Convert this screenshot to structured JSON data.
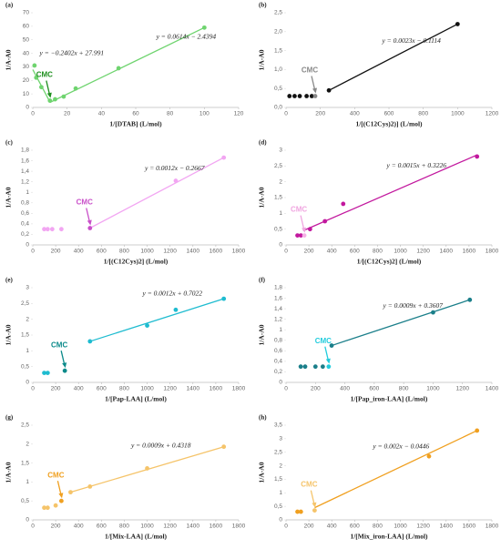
{
  "chart_data": [
    {
      "type": "scatter",
      "title": "(a)",
      "xlabel": "1/[DTAB] (L/mol)",
      "ylabel": "1/A-A0",
      "xlim": [
        0,
        120
      ],
      "xticks": [
        0,
        20,
        40,
        60,
        80,
        100,
        120
      ],
      "ylim": [
        0,
        70
      ],
      "yticks": [
        0,
        10,
        20,
        30,
        40,
        50,
        60,
        70
      ],
      "series": [
        {
          "color": "#6fd46f",
          "x": [
            1,
            2,
            5,
            10,
            13,
            18,
            25,
            50,
            100
          ],
          "values": [
            31,
            22,
            15,
            5,
            6,
            8,
            14,
            29,
            59
          ]
        },
        {
          "color": "#6fd46f",
          "markers": false,
          "x": [
            0,
            10
          ],
          "values": [
            28,
            4
          ]
        },
        {
          "color": "#6fd46f",
          "markers": false,
          "x": [
            10,
            100
          ],
          "values": [
            3.7,
            59
          ]
        }
      ],
      "equations": [
        {
          "text": "y = −0.2402x + 27.991",
          "x": 4,
          "y": 40
        },
        {
          "text": "y = 0.0614x − 2.4394",
          "x": 72,
          "y": 52
        }
      ],
      "annotation": {
        "text": "CMC",
        "x": 10,
        "y": 5,
        "color": "#1f8f1f"
      }
    },
    {
      "type": "scatter",
      "title": "(b)",
      "xlabel": "1/[(C12Cys)2)] (L/mol)",
      "ylabel": "1/A-A0",
      "xlim": [
        0,
        1200
      ],
      "xticks": [
        0,
        200,
        400,
        600,
        800,
        1000,
        1200
      ],
      "ylim": [
        0,
        2.5
      ],
      "yticks": [
        {
          "value": 0,
          "label": "0,0"
        },
        {
          "value": 0.5,
          "label": "0,5"
        },
        {
          "value": 1,
          "label": "1,0"
        },
        {
          "value": 1.5,
          "label": "1,5"
        },
        {
          "value": 2,
          "label": "2,0"
        },
        {
          "value": 2.5,
          "label": "2,5"
        }
      ],
      "series": [
        {
          "color": "#111111",
          "x": [
            20,
            50,
            80,
            120,
            150,
            250,
            1000
          ],
          "values": [
            0.3,
            0.3,
            0.3,
            0.3,
            0.3,
            0.45,
            2.2
          ]
        },
        {
          "color": "#888888",
          "x": [
            170
          ],
          "values": [
            0.3
          ]
        },
        {
          "color": "#111111",
          "markers": false,
          "x": [
            250,
            1000
          ],
          "values": [
            0.45,
            2.2
          ]
        }
      ],
      "equations": [
        {
          "text": "y = 0.0023x − 0.1114",
          "x": 560,
          "y": 1.75
        }
      ],
      "annotation": {
        "text": "CMC",
        "x": 170,
        "y": 0.3,
        "color": "#888888"
      }
    },
    {
      "type": "scatter",
      "title": "(c)",
      "xlabel": "1/[(C12Cys)2] (L/mol)",
      "ylabel": "1/A-A0",
      "xlim": [
        0,
        1800
      ],
      "xticks": [
        0,
        200,
        400,
        600,
        800,
        1000,
        1200,
        1400,
        1600,
        1800
      ],
      "ylim": [
        0,
        1.8
      ],
      "yticks": [
        0,
        {
          "value": 0.2,
          "label": "0,2"
        },
        {
          "value": 0.4,
          "label": "0,4"
        },
        {
          "value": 0.6,
          "label": "0,6"
        },
        {
          "value": 0.8,
          "label": "0,8"
        },
        1,
        {
          "value": 1.2,
          "label": "1,2"
        },
        {
          "value": 1.4,
          "label": "1,4"
        },
        {
          "value": 1.6,
          "label": "1,6"
        },
        {
          "value": 1.8,
          "label": "1,8"
        }
      ],
      "series": [
        {
          "color": "#f2a6f2",
          "x": [
            100,
            130,
            170,
            250,
            1250,
            1670
          ],
          "values": [
            0.3,
            0.3,
            0.3,
            0.3,
            1.22,
            1.66
          ]
        },
        {
          "color": "#c94fc9",
          "x": [
            500
          ],
          "values": [
            0.32
          ]
        },
        {
          "color": "#f2a6f2",
          "markers": false,
          "x": [
            500,
            1670
          ],
          "values": [
            0.32,
            1.66
          ]
        }
      ],
      "equations": [
        {
          "text": "y = 0.0012x − 0.2667",
          "x": 980,
          "y": 1.45
        }
      ],
      "annotation": {
        "text": "CMC",
        "x": 500,
        "y": 0.32,
        "color": "#c94fc9"
      }
    },
    {
      "type": "scatter",
      "title": "(d)",
      "xlabel": "1/[(C12Cys)2] (L/mol)",
      "ylabel": "1/A-A0",
      "xlim": [
        0,
        1800
      ],
      "xticks": [
        0,
        200,
        400,
        600,
        800,
        1000,
        1200,
        1400,
        1600,
        1800
      ],
      "ylim": [
        0,
        3
      ],
      "yticks": [
        0,
        {
          "value": 0.5,
          "label": "0,5"
        },
        1,
        {
          "value": 1.5,
          "label": "1,5"
        },
        2,
        {
          "value": 2.5,
          "label": "2,5"
        },
        3
      ],
      "series": [
        {
          "color": "#c2189e",
          "x": [
            100,
            130,
            210,
            340,
            500,
            1670
          ],
          "values": [
            0.3,
            0.3,
            0.5,
            0.75,
            1.3,
            2.8
          ]
        },
        {
          "color": "#f5b0e6",
          "x": [
            160
          ],
          "values": [
            0.3
          ]
        },
        {
          "color": "#c2189e",
          "markers": false,
          "x": [
            150,
            1670
          ],
          "values": [
            0.45,
            2.85
          ]
        }
      ],
      "equations": [
        {
          "text": "y = 0.0015x + 0.3226",
          "x": 880,
          "y": 2.5
        }
      ],
      "annotation": {
        "text": "CMC",
        "x": 160,
        "y": 0.3,
        "color": "#f0a6e0"
      }
    },
    {
      "type": "scatter",
      "title": "(e)",
      "xlabel": "1/[Pap-LAA] (L/mol)",
      "ylabel": "1/A-A0",
      "xlim": [
        0,
        1800
      ],
      "xticks": [
        0,
        200,
        400,
        600,
        800,
        1000,
        1200,
        1400,
        1600,
        1800
      ],
      "ylim": [
        0,
        3
      ],
      "yticks": [
        0,
        {
          "value": 0.5,
          "label": "0,5"
        },
        1,
        {
          "value": 1.5,
          "label": "1,5"
        },
        2,
        {
          "value": 2.5,
          "label": "2,5"
        },
        3
      ],
      "series": [
        {
          "color": "#1fbcd0",
          "x": [
            100,
            130,
            500,
            1000,
            1250,
            1670
          ],
          "values": [
            0.3,
            0.3,
            1.3,
            1.8,
            2.3,
            2.65
          ]
        },
        {
          "color": "#0a8a8a",
          "x": [
            280
          ],
          "values": [
            0.37
          ]
        },
        {
          "color": "#1fbcd0",
          "markers": false,
          "x": [
            500,
            1670
          ],
          "values": [
            1.3,
            2.65
          ]
        }
      ],
      "equations": [
        {
          "text": "y = 0.0012x + 0.7022",
          "x": 960,
          "y": 2.8
        }
      ],
      "annotation": {
        "text": "CMC",
        "x": 280,
        "y": 0.37,
        "color": "#0a8a8a"
      }
    },
    {
      "type": "scatter",
      "title": "(f)",
      "xlabel": "1/[Pap_iron-LAA] (L/mol)",
      "ylabel": "1/A-A0",
      "xlim": [
        0,
        1400
      ],
      "xticks": [
        0,
        200,
        400,
        600,
        800,
        1000,
        1200,
        1400
      ],
      "ylim": [
        0,
        1.8
      ],
      "yticks": [
        0,
        {
          "value": 0.2,
          "label": "0,2"
        },
        {
          "value": 0.4,
          "label": "0,4"
        },
        {
          "value": 0.6,
          "label": "0,6"
        },
        {
          "value": 0.8,
          "label": "0,8"
        },
        1,
        {
          "value": 1.2,
          "label": "1,2"
        },
        {
          "value": 1.4,
          "label": "1,4"
        },
        {
          "value": 1.6,
          "label": "1,6"
        },
        {
          "value": 1.8,
          "label": "1,8"
        }
      ],
      "series": [
        {
          "color": "#1b7f8a",
          "x": [
            100,
            130,
            200,
            250,
            310,
            1000,
            1250
          ],
          "values": [
            0.3,
            0.3,
            0.3,
            0.3,
            0.7,
            1.33,
            1.57
          ]
        },
        {
          "color": "#22ccdd",
          "x": [
            290
          ],
          "values": [
            0.3
          ]
        },
        {
          "color": "#1b7f8a",
          "markers": false,
          "x": [
            310,
            1250
          ],
          "values": [
            0.7,
            1.57
          ]
        }
      ],
      "equations": [
        {
          "text": "y = 0.0009x + 0.3607",
          "x": 660,
          "y": 1.45
        }
      ],
      "annotation": {
        "text": "CMC",
        "x": 290,
        "y": 0.3,
        "color": "#22ccdd"
      }
    },
    {
      "type": "scatter",
      "title": "(g)",
      "xlabel": "1/[Mix-LAA] (L/mol)",
      "ylabel": "1/A-A0",
      "xlim": [
        0,
        1800
      ],
      "xticks": [
        0,
        200,
        400,
        600,
        800,
        1000,
        1200,
        1400,
        1600,
        1800
      ],
      "ylim": [
        0,
        2.5
      ],
      "yticks": [
        0,
        {
          "value": 0.5,
          "label": "0,5"
        },
        1,
        {
          "value": 1.5,
          "label": "1,5"
        },
        2,
        {
          "value": 2.5,
          "label": "2,5"
        }
      ],
      "series": [
        {
          "color": "#f5c46a",
          "x": [
            100,
            130,
            200,
            330,
            500,
            1000,
            1670
          ],
          "values": [
            0.32,
            0.32,
            0.38,
            0.73,
            0.88,
            1.36,
            1.93
          ]
        },
        {
          "color": "#f0a020",
          "x": [
            250
          ],
          "values": [
            0.5
          ]
        },
        {
          "color": "#f5c46a",
          "markers": false,
          "x": [
            330,
            1670
          ],
          "values": [
            0.73,
            1.93
          ]
        }
      ],
      "equations": [
        {
          "text": "y = 0.0009x + 0.4318",
          "x": 860,
          "y": 1.95
        }
      ],
      "annotation": {
        "text": "CMC",
        "x": 250,
        "y": 0.5,
        "color": "#f0a020"
      }
    },
    {
      "type": "scatter",
      "title": "(h)",
      "xlabel": "1/[Mix_iron-LAA] (L/mol)",
      "ylabel": "1/A-A0",
      "xlim": [
        0,
        1800
      ],
      "xticks": [
        0,
        200,
        400,
        600,
        800,
        1000,
        1200,
        1400,
        1600,
        1800
      ],
      "ylim": [
        0,
        3.5
      ],
      "yticks": [
        0,
        {
          "value": 0.5,
          "label": "0,5"
        },
        1,
        {
          "value": 1.5,
          "label": "1,5"
        },
        2,
        {
          "value": 2.5,
          "label": "2,5"
        },
        3,
        {
          "value": 3.5,
          "label": "3,5"
        }
      ],
      "series": [
        {
          "color": "#f0a020",
          "x": [
            100,
            130,
            1250,
            1670
          ],
          "values": [
            0.3,
            0.3,
            2.35,
            3.3
          ]
        },
        {
          "color": "#f5c46a",
          "x": [
            250
          ],
          "values": [
            0.35
          ]
        },
        {
          "color": "#f0a020",
          "markers": false,
          "x": [
            250,
            1670
          ],
          "values": [
            0.45,
            3.3
          ]
        }
      ],
      "equations": [
        {
          "text": "y = 0.002x − 0.0446",
          "x": 760,
          "y": 2.7
        }
      ],
      "annotation": {
        "text": "CMC",
        "x": 250,
        "y": 0.35,
        "color": "#f5c46a"
      }
    }
  ]
}
